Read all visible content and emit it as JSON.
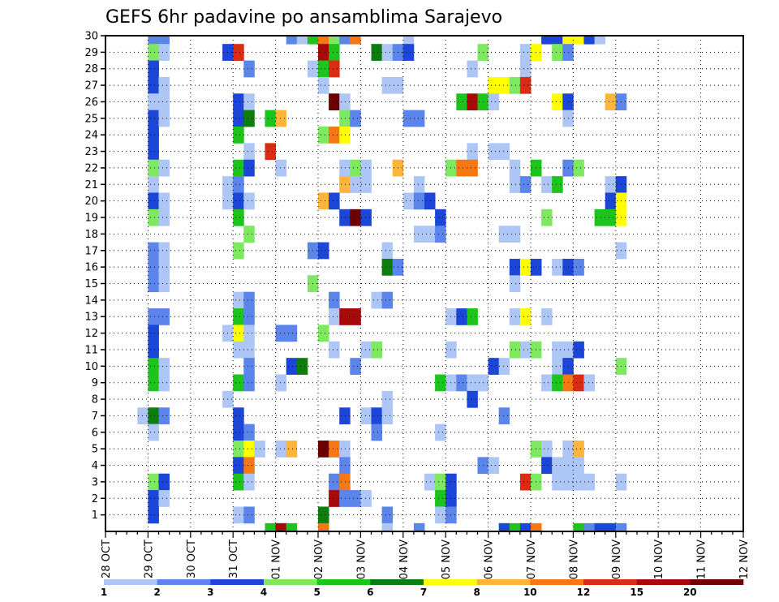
{
  "chart_data": {
    "type": "heatmap",
    "title": "GEFS 6hr padavine po ansamblima Sarajevo",
    "y_ticks": [
      "1",
      "2",
      "3",
      "4",
      "5",
      "6",
      "7",
      "8",
      "9",
      "10",
      "11",
      "12",
      "13",
      "14",
      "15",
      "16",
      "17",
      "18",
      "19",
      "20",
      "21",
      "22",
      "23",
      "24",
      "25",
      "26",
      "27",
      "28",
      "29",
      "30"
    ],
    "x_ticks": [
      "28 OCT",
      "29 OCT",
      "30 OCT",
      "31 OCT",
      "01 NOV",
      "02 NOV",
      "03 NOV",
      "04 NOV",
      "05 NOV",
      "06 NOV",
      "07 NOV",
      "08 NOV",
      "09 NOV",
      "10 NOV",
      "11 NOV",
      "12 NOV"
    ],
    "x_range": [
      0,
      60
    ],
    "y_range": [
      0,
      30
    ],
    "grid": true,
    "legend_position": "bottom",
    "colorbar": {
      "labels": [
        "1",
        "2",
        "3",
        "4",
        "5",
        "6",
        "7",
        "8",
        "10",
        "12",
        "15",
        "20"
      ],
      "colors": [
        "#aec6f5",
        "#5b85ea",
        "#1c46d8",
        "#7ee860",
        "#1cc41c",
        "#0d7d0d",
        "#ffff00",
        "#ffb43c",
        "#f57814",
        "#db2b14",
        "#a80a0a",
        "#6e0000"
      ]
    },
    "cells": [
      [
        4,
        30,
        1
      ],
      [
        5,
        30,
        1
      ],
      [
        17,
        30,
        1
      ],
      [
        18,
        30,
        0
      ],
      [
        19,
        30,
        4
      ],
      [
        20,
        30,
        8
      ],
      [
        21,
        30,
        3
      ],
      [
        22,
        30,
        1
      ],
      [
        23,
        30,
        8
      ],
      [
        28,
        30,
        0
      ],
      [
        41,
        30,
        2
      ],
      [
        42,
        30,
        2
      ],
      [
        43,
        30,
        6
      ],
      [
        44,
        30,
        6
      ],
      [
        45,
        30,
        2
      ],
      [
        46,
        30,
        0
      ],
      [
        4,
        29,
        3
      ],
      [
        5,
        29,
        0
      ],
      [
        11,
        29,
        2
      ],
      [
        12,
        29,
        9
      ],
      [
        20,
        29,
        10
      ],
      [
        21,
        29,
        4
      ],
      [
        25,
        29,
        5
      ],
      [
        26,
        29,
        0
      ],
      [
        27,
        29,
        1
      ],
      [
        28,
        29,
        2
      ],
      [
        35,
        29,
        3
      ],
      [
        39,
        29,
        0
      ],
      [
        40,
        29,
        6
      ],
      [
        42,
        29,
        3
      ],
      [
        43,
        29,
        1
      ],
      [
        4,
        28,
        2
      ],
      [
        13,
        28,
        1
      ],
      [
        19,
        28,
        0
      ],
      [
        20,
        28,
        4
      ],
      [
        21,
        28,
        9
      ],
      [
        34,
        28,
        0
      ],
      [
        39,
        28,
        0
      ],
      [
        4,
        27,
        2
      ],
      [
        5,
        27,
        0
      ],
      [
        20,
        27,
        0
      ],
      [
        26,
        27,
        0
      ],
      [
        27,
        27,
        0
      ],
      [
        36,
        27,
        6
      ],
      [
        37,
        27,
        6
      ],
      [
        38,
        27,
        3
      ],
      [
        39,
        27,
        9
      ],
      [
        4,
        26,
        0
      ],
      [
        5,
        26,
        0
      ],
      [
        12,
        26,
        2
      ],
      [
        13,
        26,
        0
      ],
      [
        21,
        26,
        11
      ],
      [
        22,
        26,
        0
      ],
      [
        33,
        26,
        4
      ],
      [
        34,
        26,
        10
      ],
      [
        35,
        26,
        4
      ],
      [
        36,
        26,
        0
      ],
      [
        42,
        26,
        6
      ],
      [
        43,
        26,
        2
      ],
      [
        47,
        26,
        7
      ],
      [
        48,
        26,
        1
      ],
      [
        4,
        25,
        2
      ],
      [
        5,
        25,
        0
      ],
      [
        12,
        25,
        2
      ],
      [
        13,
        25,
        5
      ],
      [
        15,
        25,
        4
      ],
      [
        16,
        25,
        7
      ],
      [
        22,
        25,
        3
      ],
      [
        23,
        25,
        1
      ],
      [
        28,
        25,
        1
      ],
      [
        29,
        25,
        1
      ],
      [
        43,
        25,
        0
      ],
      [
        4,
        24,
        2
      ],
      [
        12,
        24,
        4
      ],
      [
        20,
        24,
        3
      ],
      [
        21,
        24,
        8
      ],
      [
        22,
        24,
        6
      ],
      [
        4,
        23,
        2
      ],
      [
        13,
        23,
        0
      ],
      [
        15,
        23,
        9
      ],
      [
        34,
        23,
        0
      ],
      [
        36,
        23,
        0
      ],
      [
        37,
        23,
        0
      ],
      [
        4,
        22,
        3
      ],
      [
        5,
        22,
        0
      ],
      [
        12,
        22,
        4
      ],
      [
        13,
        22,
        2
      ],
      [
        16,
        22,
        0
      ],
      [
        22,
        22,
        0
      ],
      [
        23,
        22,
        3
      ],
      [
        24,
        22,
        0
      ],
      [
        27,
        22,
        7
      ],
      [
        32,
        22,
        3
      ],
      [
        33,
        22,
        8
      ],
      [
        34,
        22,
        8
      ],
      [
        38,
        22,
        0
      ],
      [
        40,
        22,
        4
      ],
      [
        43,
        22,
        1
      ],
      [
        44,
        22,
        3
      ],
      [
        4,
        21,
        0
      ],
      [
        11,
        21,
        0
      ],
      [
        12,
        21,
        1
      ],
      [
        22,
        21,
        7
      ],
      [
        23,
        21,
        0
      ],
      [
        24,
        21,
        0
      ],
      [
        29,
        21,
        0
      ],
      [
        38,
        21,
        0
      ],
      [
        39,
        21,
        1
      ],
      [
        41,
        21,
        0
      ],
      [
        42,
        21,
        4
      ],
      [
        47,
        21,
        0
      ],
      [
        48,
        21,
        2
      ],
      [
        4,
        20,
        2
      ],
      [
        5,
        20,
        0
      ],
      [
        11,
        20,
        0
      ],
      [
        12,
        20,
        2
      ],
      [
        13,
        20,
        0
      ],
      [
        20,
        20,
        7
      ],
      [
        21,
        20,
        2
      ],
      [
        28,
        20,
        0
      ],
      [
        29,
        20,
        1
      ],
      [
        30,
        20,
        2
      ],
      [
        47,
        20,
        2
      ],
      [
        48,
        20,
        6
      ],
      [
        4,
        19,
        3
      ],
      [
        5,
        19,
        0
      ],
      [
        12,
        19,
        4
      ],
      [
        22,
        19,
        2
      ],
      [
        23,
        19,
        11
      ],
      [
        24,
        19,
        2
      ],
      [
        31,
        19,
        2
      ],
      [
        41,
        19,
        3
      ],
      [
        46,
        19,
        4
      ],
      [
        47,
        19,
        4
      ],
      [
        48,
        19,
        6
      ],
      [
        13,
        18,
        3
      ],
      [
        29,
        18,
        0
      ],
      [
        30,
        18,
        0
      ],
      [
        31,
        18,
        1
      ],
      [
        37,
        18,
        0
      ],
      [
        38,
        18,
        0
      ],
      [
        4,
        17,
        1
      ],
      [
        5,
        17,
        0
      ],
      [
        12,
        17,
        3
      ],
      [
        19,
        17,
        1
      ],
      [
        20,
        17,
        2
      ],
      [
        26,
        17,
        0
      ],
      [
        48,
        17,
        0
      ],
      [
        4,
        16,
        1
      ],
      [
        5,
        16,
        0
      ],
      [
        26,
        16,
        5
      ],
      [
        27,
        16,
        1
      ],
      [
        38,
        16,
        2
      ],
      [
        39,
        16,
        6
      ],
      [
        40,
        16,
        2
      ],
      [
        42,
        16,
        0
      ],
      [
        43,
        16,
        2
      ],
      [
        44,
        16,
        1
      ],
      [
        4,
        15,
        1
      ],
      [
        5,
        15,
        0
      ],
      [
        19,
        15,
        3
      ],
      [
        38,
        15,
        0
      ],
      [
        12,
        14,
        0
      ],
      [
        13,
        14,
        1
      ],
      [
        21,
        14,
        1
      ],
      [
        25,
        14,
        0
      ],
      [
        26,
        14,
        1
      ],
      [
        4,
        13,
        1
      ],
      [
        5,
        13,
        1
      ],
      [
        12,
        13,
        4
      ],
      [
        13,
        13,
        1
      ],
      [
        21,
        13,
        0
      ],
      [
        22,
        13,
        10
      ],
      [
        23,
        13,
        10
      ],
      [
        32,
        13,
        0
      ],
      [
        33,
        13,
        2
      ],
      [
        34,
        13,
        4
      ],
      [
        38,
        13,
        0
      ],
      [
        39,
        13,
        6
      ],
      [
        41,
        13,
        0
      ],
      [
        4,
        12,
        2
      ],
      [
        11,
        12,
        0
      ],
      [
        12,
        12,
        6
      ],
      [
        13,
        12,
        0
      ],
      [
        16,
        12,
        1
      ],
      [
        17,
        12,
        1
      ],
      [
        20,
        12,
        3
      ],
      [
        4,
        11,
        2
      ],
      [
        12,
        11,
        0
      ],
      [
        13,
        11,
        0
      ],
      [
        21,
        11,
        0
      ],
      [
        24,
        11,
        0
      ],
      [
        25,
        11,
        3
      ],
      [
        32,
        11,
        0
      ],
      [
        38,
        11,
        3
      ],
      [
        39,
        11,
        0
      ],
      [
        40,
        11,
        3
      ],
      [
        42,
        11,
        0
      ],
      [
        43,
        11,
        0
      ],
      [
        44,
        11,
        2
      ],
      [
        4,
        10,
        4
      ],
      [
        5,
        10,
        0
      ],
      [
        13,
        10,
        1
      ],
      [
        17,
        10,
        2
      ],
      [
        18,
        10,
        5
      ],
      [
        23,
        10,
        1
      ],
      [
        36,
        10,
        2
      ],
      [
        37,
        10,
        0
      ],
      [
        42,
        10,
        0
      ],
      [
        43,
        10,
        2
      ],
      [
        48,
        10,
        3
      ],
      [
        4,
        9,
        4
      ],
      [
        5,
        9,
        0
      ],
      [
        12,
        9,
        4
      ],
      [
        13,
        9,
        1
      ],
      [
        16,
        9,
        0
      ],
      [
        31,
        9,
        4
      ],
      [
        32,
        9,
        0
      ],
      [
        33,
        9,
        1
      ],
      [
        34,
        9,
        0
      ],
      [
        35,
        9,
        0
      ],
      [
        41,
        9,
        0
      ],
      [
        42,
        9,
        4
      ],
      [
        43,
        9,
        8
      ],
      [
        44,
        9,
        9
      ],
      [
        45,
        9,
        0
      ],
      [
        11,
        8,
        0
      ],
      [
        26,
        8,
        0
      ],
      [
        34,
        8,
        2
      ],
      [
        3,
        7,
        0
      ],
      [
        4,
        7,
        5
      ],
      [
        5,
        7,
        1
      ],
      [
        12,
        7,
        2
      ],
      [
        22,
        7,
        2
      ],
      [
        24,
        7,
        0
      ],
      [
        25,
        7,
        2
      ],
      [
        26,
        7,
        0
      ],
      [
        37,
        7,
        1
      ],
      [
        4,
        6,
        0
      ],
      [
        12,
        6,
        2
      ],
      [
        13,
        6,
        1
      ],
      [
        25,
        6,
        1
      ],
      [
        31,
        6,
        0
      ],
      [
        12,
        5,
        3
      ],
      [
        13,
        5,
        6
      ],
      [
        14,
        5,
        0
      ],
      [
        16,
        5,
        0
      ],
      [
        17,
        5,
        7
      ],
      [
        20,
        5,
        11
      ],
      [
        21,
        5,
        8
      ],
      [
        22,
        5,
        0
      ],
      [
        40,
        5,
        3
      ],
      [
        41,
        5,
        0
      ],
      [
        43,
        5,
        0
      ],
      [
        44,
        5,
        7
      ],
      [
        12,
        4,
        2
      ],
      [
        13,
        4,
        8
      ],
      [
        22,
        4,
        1
      ],
      [
        35,
        4,
        1
      ],
      [
        36,
        4,
        0
      ],
      [
        41,
        4,
        2
      ],
      [
        42,
        4,
        0
      ],
      [
        43,
        4,
        0
      ],
      [
        44,
        4,
        0
      ],
      [
        4,
        3,
        3
      ],
      [
        5,
        3,
        2
      ],
      [
        12,
        3,
        4
      ],
      [
        13,
        3,
        0
      ],
      [
        21,
        3,
        1
      ],
      [
        22,
        3,
        8
      ],
      [
        30,
        3,
        0
      ],
      [
        31,
        3,
        3
      ],
      [
        32,
        3,
        2
      ],
      [
        39,
        3,
        9
      ],
      [
        40,
        3,
        3
      ],
      [
        42,
        3,
        0
      ],
      [
        43,
        3,
        0
      ],
      [
        44,
        3,
        0
      ],
      [
        45,
        3,
        0
      ],
      [
        48,
        3,
        0
      ],
      [
        4,
        2,
        2
      ],
      [
        5,
        2,
        0
      ],
      [
        21,
        2,
        10
      ],
      [
        22,
        2,
        1
      ],
      [
        23,
        2,
        1
      ],
      [
        24,
        2,
        0
      ],
      [
        31,
        2,
        4
      ],
      [
        32,
        2,
        2
      ],
      [
        4,
        1,
        2
      ],
      [
        12,
        1,
        0
      ],
      [
        13,
        1,
        1
      ],
      [
        20,
        1,
        5
      ],
      [
        26,
        1,
        1
      ],
      [
        31,
        1,
        0
      ],
      [
        32,
        1,
        1
      ],
      [
        15,
        0,
        4
      ],
      [
        16,
        0,
        10
      ],
      [
        17,
        0,
        4
      ],
      [
        20,
        0,
        8
      ],
      [
        26,
        0,
        0
      ],
      [
        29,
        0,
        1
      ],
      [
        37,
        0,
        2
      ],
      [
        38,
        0,
        4
      ],
      [
        39,
        0,
        2
      ],
      [
        40,
        0,
        8
      ],
      [
        44,
        0,
        4
      ],
      [
        45,
        0,
        1
      ],
      [
        46,
        0,
        2
      ],
      [
        47,
        0,
        2
      ],
      [
        48,
        0,
        1
      ]
    ]
  }
}
